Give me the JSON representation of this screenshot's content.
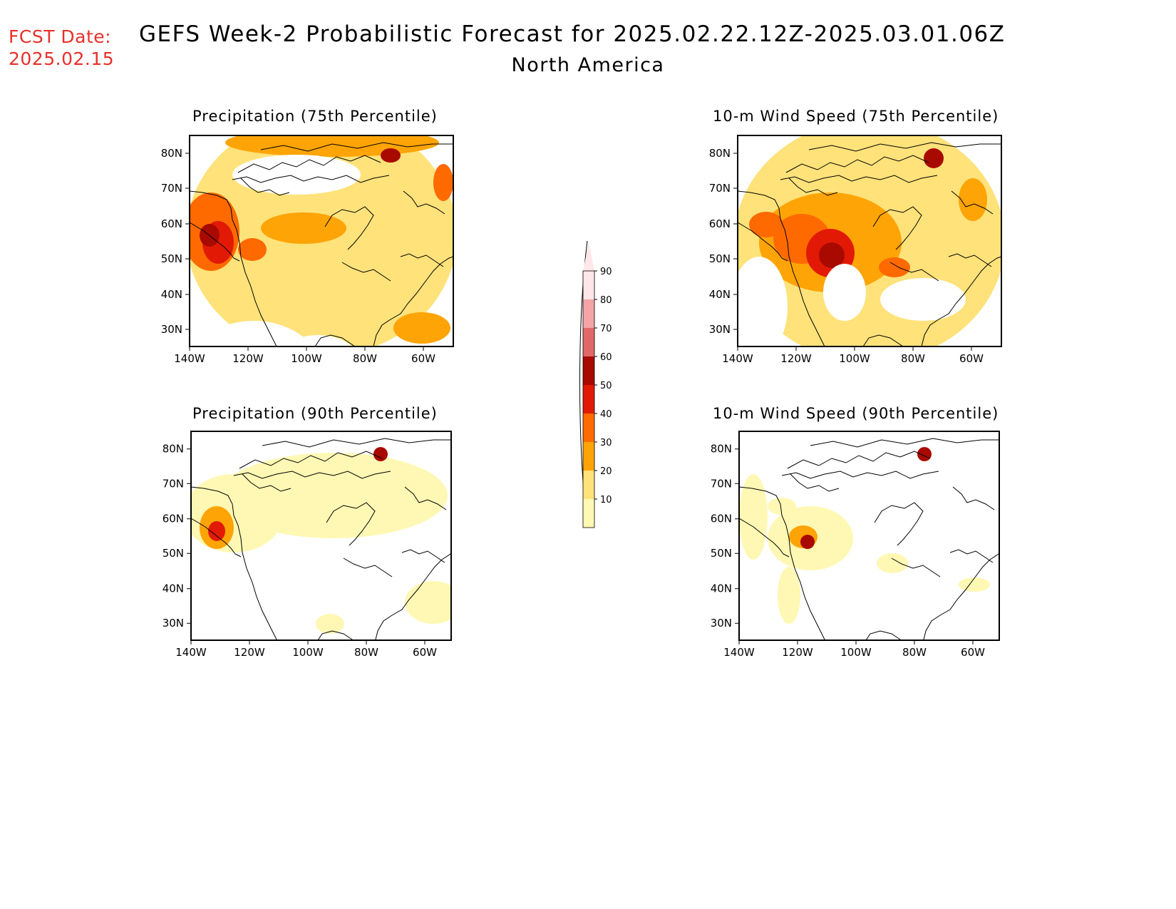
{
  "forecast_date": {
    "label": "FCST Date:",
    "value": "2025.02.15"
  },
  "title": "GEFS Week-2 Probabilistic Forecast for 2025.02.22.12Z-2025.03.01.06Z",
  "subtitle": "North America",
  "map_axes": {
    "lat_ticks": [
      "80N",
      "70N",
      "60N",
      "50N",
      "40N",
      "30N"
    ],
    "lon_ticks": [
      "140W",
      "120W",
      "100W",
      "80W",
      "60W"
    ]
  },
  "panels": [
    {
      "id": "precip75",
      "title": "Precipitation (75th Percentile)"
    },
    {
      "id": "wind75",
      "title": "10-m Wind Speed (75th Percentile)"
    },
    {
      "id": "precip90",
      "title": "Precipitation (90th Percentile)"
    },
    {
      "id": "wind90",
      "title": "10-m Wind Speed (90th Percentile)"
    }
  ],
  "colorbar": {
    "labels": [
      "10",
      "20",
      "30",
      "40",
      "50",
      "60",
      "70",
      "80",
      "90"
    ],
    "colors": [
      "#fff8b4",
      "#ffe27a",
      "#ffa406",
      "#ff6a00",
      "#e21a05",
      "#a80a00",
      "#e06868",
      "#f4a4a6",
      "#ffe6e8"
    ]
  }
}
